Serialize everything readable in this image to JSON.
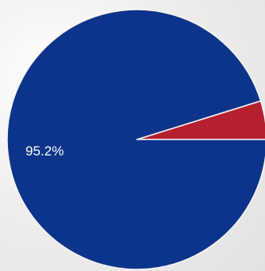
{
  "chart_data": {
    "type": "pie",
    "slices": [
      {
        "value": 95.2,
        "label": "95.2%",
        "color": "#0c348a"
      },
      {
        "value": 4.8,
        "label": "",
        "color": "#b51f2e"
      }
    ]
  }
}
